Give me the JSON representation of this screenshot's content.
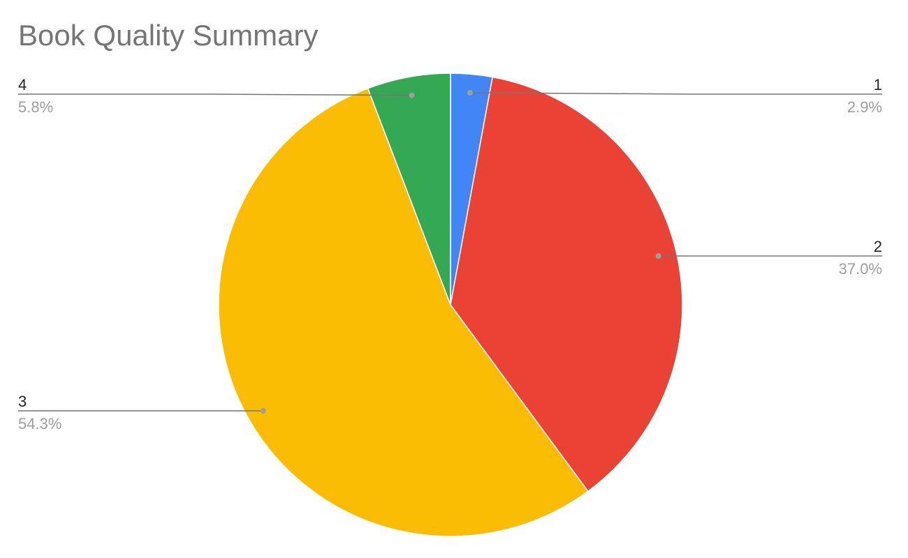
{
  "chart_data": {
    "type": "pie",
    "title": "Book Quality Summary",
    "slices": [
      {
        "label": "1",
        "percent_label": "2.9%",
        "value": 2.9,
        "color": "#4285f4"
      },
      {
        "label": "2",
        "percent_label": "37.0%",
        "value": 37.0,
        "color": "#ea4335"
      },
      {
        "label": "3",
        "percent_label": "54.3%",
        "value": 54.3,
        "color": "#fbbc04"
      },
      {
        "label": "4",
        "percent_label": "5.8%",
        "value": 5.8,
        "color": "#34a853"
      }
    ],
    "start_angle": "12 o'clock",
    "direction": "clockwise",
    "legend": "none",
    "labels": "outside with leader lines"
  }
}
